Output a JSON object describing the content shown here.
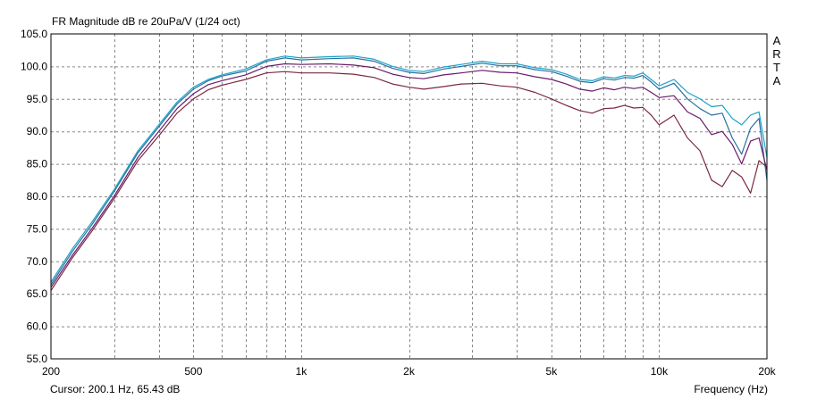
{
  "app": {
    "brand": "ARTA"
  },
  "cursor": {
    "text": "Cursor: 200.1 Hz, 65.43 dB"
  },
  "chart_data": {
    "type": "line",
    "title": "FR Magnitude dB re 20uPa/V (1/24 oct)",
    "xlabel": "Frequency (Hz)",
    "ylabel": "",
    "xscale": "log",
    "xlim": [
      200,
      20000
    ],
    "ylim": [
      55,
      105
    ],
    "grid": true,
    "x_tick_labels": [
      {
        "value": 200,
        "label": "200"
      },
      {
        "value": 500,
        "label": "500"
      },
      {
        "value": 1000,
        "label": "1k"
      },
      {
        "value": 2000,
        "label": "2k"
      },
      {
        "value": 5000,
        "label": "5k"
      },
      {
        "value": 10000,
        "label": "10k"
      },
      {
        "value": 20000,
        "label": "20k"
      }
    ],
    "x_minor_grid": [
      300,
      400,
      600,
      700,
      800,
      900,
      3000,
      4000,
      6000,
      7000,
      8000,
      9000
    ],
    "y_ticks": [
      "105.0",
      "100.0",
      "95.0",
      "90.0",
      "85.0",
      "80.0",
      "75.0",
      "70.0",
      "65.0",
      "60.0",
      "55.0"
    ],
    "series": [
      {
        "color": "#1aa3c8",
        "x": [
          200,
          230,
          260,
          300,
          350,
          400,
          450,
          500,
          550,
          600,
          700,
          800,
          900,
          1000,
          1200,
          1400,
          1600,
          1800,
          2000,
          2200,
          2500,
          2800,
          3200,
          3600,
          4000,
          4500,
          5000,
          5500,
          6000,
          6500,
          7000,
          7500,
          8000,
          8500,
          9000,
          9500,
          10000,
          11000,
          12000,
          13000,
          14000,
          15000,
          16000,
          17000,
          18000,
          19000,
          20000
        ],
        "y": [
          66.8,
          72.0,
          76.0,
          81.0,
          87.0,
          91.0,
          94.5,
          96.8,
          98.0,
          98.7,
          99.6,
          101.0,
          101.6,
          101.3,
          101.5,
          101.6,
          101.1,
          100.0,
          99.4,
          99.2,
          99.9,
          100.3,
          100.8,
          100.4,
          100.4,
          99.8,
          99.5,
          98.8,
          98.0,
          97.8,
          98.4,
          98.2,
          98.6,
          98.5,
          99.0,
          98.0,
          97.0,
          98.0,
          96.0,
          95.0,
          93.8,
          94.0,
          92.0,
          91.0,
          92.5,
          93.0,
          86.0
        ]
      },
      {
        "color": "#2a6fa0",
        "x": [
          200,
          230,
          260,
          300,
          350,
          400,
          450,
          500,
          550,
          600,
          700,
          800,
          900,
          1000,
          1200,
          1400,
          1600,
          1800,
          2000,
          2200,
          2500,
          2800,
          3200,
          3600,
          4000,
          4500,
          5000,
          5500,
          6000,
          6500,
          7000,
          7500,
          8000,
          8500,
          9000,
          9500,
          10000,
          11000,
          12000,
          13000,
          14000,
          15000,
          16000,
          17000,
          18000,
          19000,
          20000
        ],
        "y": [
          66.4,
          71.6,
          75.6,
          80.7,
          86.7,
          90.7,
          94.2,
          96.5,
          97.8,
          98.5,
          99.3,
          100.8,
          101.3,
          101.0,
          101.2,
          101.3,
          100.8,
          99.7,
          99.1,
          98.9,
          99.6,
          100.0,
          100.5,
          100.1,
          100.1,
          99.5,
          99.2,
          98.5,
          97.7,
          97.5,
          98.1,
          97.9,
          98.3,
          98.2,
          98.6,
          97.6,
          96.5,
          97.4,
          95.0,
          93.5,
          92.5,
          92.8,
          89.0,
          86.5,
          90.5,
          92.0,
          82.5
        ]
      },
      {
        "color": "#6a1b6a",
        "x": [
          200,
          230,
          260,
          300,
          350,
          400,
          450,
          500,
          550,
          600,
          700,
          800,
          900,
          1000,
          1200,
          1400,
          1600,
          1800,
          2000,
          2200,
          2500,
          2800,
          3200,
          3600,
          4000,
          4500,
          5000,
          5500,
          6000,
          6500,
          7000,
          7500,
          8000,
          8500,
          9000,
          9500,
          10000,
          11000,
          12000,
          13000,
          14000,
          15000,
          16000,
          17000,
          18000,
          19000,
          20000
        ],
        "y": [
          66.0,
          71.0,
          75.0,
          80.0,
          86.0,
          90.0,
          93.5,
          95.8,
          97.2,
          97.8,
          98.7,
          100.0,
          100.4,
          100.3,
          100.4,
          100.2,
          99.8,
          98.8,
          98.3,
          98.1,
          98.7,
          99.0,
          99.4,
          99.1,
          99.0,
          98.4,
          98.0,
          97.3,
          96.5,
          96.2,
          96.7,
          96.4,
          96.8,
          96.6,
          96.8,
          96.0,
          95.2,
          95.5,
          93.0,
          92.0,
          89.5,
          90.0,
          88.0,
          85.0,
          88.5,
          89.0,
          84.0
        ]
      },
      {
        "color": "#7a2840",
        "x": [
          200,
          230,
          260,
          300,
          350,
          400,
          450,
          500,
          550,
          600,
          700,
          800,
          900,
          1000,
          1200,
          1400,
          1600,
          1800,
          2000,
          2200,
          2500,
          2800,
          3200,
          3600,
          4000,
          4500,
          5000,
          5500,
          6000,
          6500,
          7000,
          7500,
          8000,
          8500,
          9000,
          9500,
          10000,
          11000,
          12000,
          13000,
          14000,
          15000,
          16000,
          17000,
          18000,
          19000,
          20000
        ],
        "y": [
          65.5,
          70.6,
          74.6,
          79.6,
          85.5,
          89.3,
          92.8,
          95.0,
          96.4,
          97.1,
          98.0,
          99.0,
          99.2,
          99.0,
          99.0,
          98.8,
          98.3,
          97.3,
          96.8,
          96.5,
          96.9,
          97.3,
          97.4,
          97.0,
          96.8,
          96.0,
          95.0,
          94.0,
          93.2,
          92.8,
          93.5,
          93.6,
          94.0,
          93.6,
          93.7,
          92.5,
          91.0,
          92.5,
          89.0,
          87.0,
          82.5,
          81.5,
          84.0,
          83.0,
          80.5,
          85.5,
          84.5
        ]
      }
    ]
  }
}
